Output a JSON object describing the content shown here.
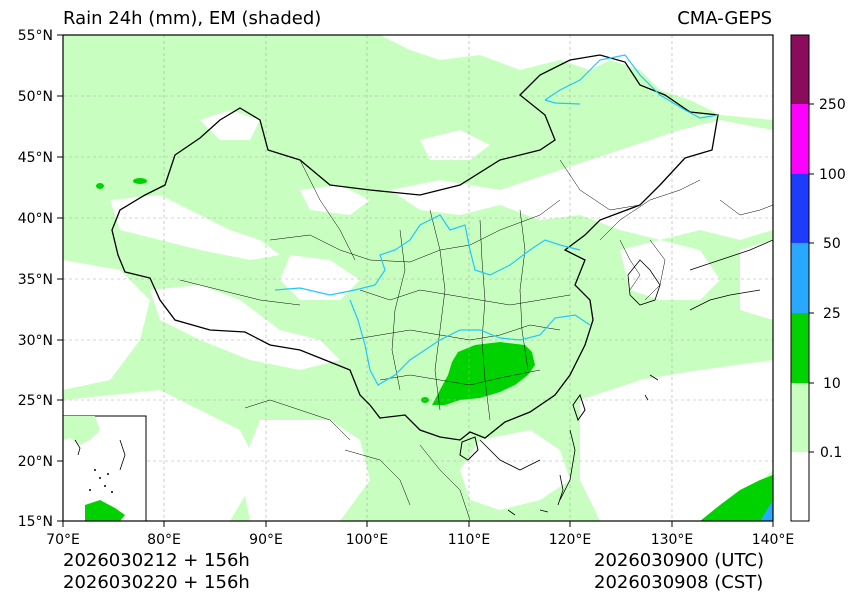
{
  "title_left": "Rain 24h (mm), EM (shaded)",
  "title_right": "CMA-GEPS",
  "footer": {
    "init_utc": "2026030212 + 156h",
    "init_cst": "2026030220 + 156h",
    "valid_utc": "2026030900 (UTC)",
    "valid_cst": "2026030908 (CST)"
  },
  "lat_ticks": [
    "55°N",
    "50°N",
    "45°N",
    "40°N",
    "35°N",
    "30°N",
    "25°N",
    "20°N",
    "15°N"
  ],
  "lon_ticks": [
    "70°E",
    "80°E",
    "90°E",
    "100°E",
    "110°E",
    "120°E",
    "130°E",
    "140°E"
  ],
  "colorbar": {
    "labels": [
      "0.1",
      "10",
      "25",
      "50",
      "100",
      "250"
    ],
    "colors": [
      "#ffffff",
      "#c8ffc0",
      "#00d200",
      "#2aa8ff",
      "#1e3cff",
      "#ff00ff",
      "#8b0c5a"
    ]
  }
}
